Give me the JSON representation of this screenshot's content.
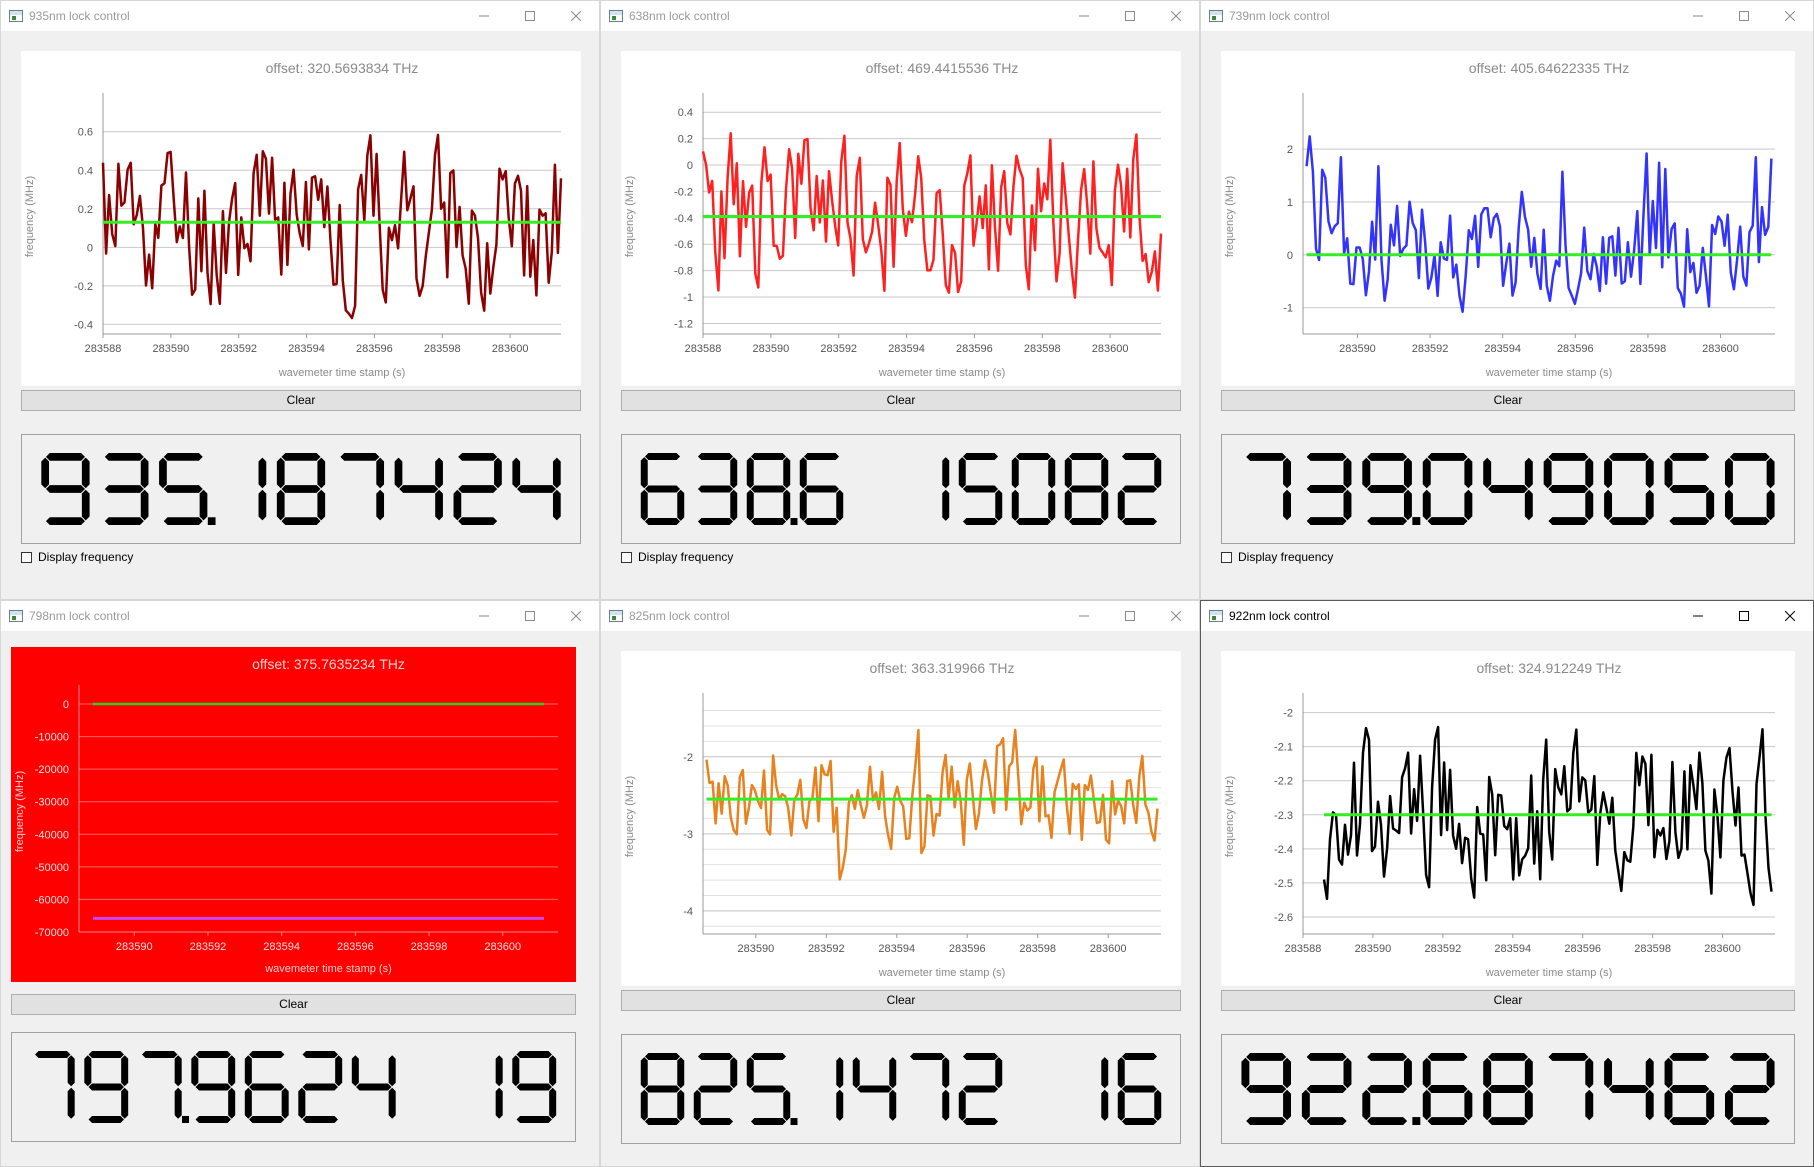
{
  "common": {
    "clear_label": "Clear",
    "display_frequency_label": "Display frequency"
  },
  "windows": [
    {
      "id": "935",
      "title": "935nm lock control",
      "active": false,
      "alarm": false,
      "offset": "offset: 320.5693834 THz",
      "frequency": "935.187424",
      "lcd_text": "935.187424",
      "show_checkbox": true,
      "line_color": "#8b0000",
      "setpoint_color": "#33ee22",
      "background": "#ffffff",
      "chart_data": {
        "type": "line",
        "title": "offset: 320.5693834 THz",
        "xlabel": "wavemeter time stamp (s)",
        "ylabel": "frequency (MHz)",
        "xlim": [
          283588,
          283601.5
        ],
        "ylim": [
          -0.45,
          0.77
        ],
        "xticks": [
          283588,
          283590,
          283592,
          283594,
          283596,
          283598,
          283600
        ],
        "yticks": [
          -0.4,
          -0.2,
          0,
          0.2,
          0.4,
          0.6
        ],
        "ytick_labels": [
          "-0.4",
          "-0.2",
          "0",
          "0.2",
          "0.4",
          "0.6"
        ],
        "setpoint": 0.13,
        "trend": {
          "x_start": 283588,
          "x_end": 283601.5,
          "seed": 11,
          "amp": 0.55,
          "baseline": 0.15,
          "min": -0.42,
          "max": 0.68
        }
      }
    },
    {
      "id": "638",
      "title": "638nm lock control",
      "active": false,
      "alarm": false,
      "offset": "offset: 469.4415536 THz",
      "frequency": "638.615082",
      "lcd_text": "638.6 15082",
      "show_checkbox": true,
      "line_color": "#ff2020",
      "setpoint_color": "#33ee22",
      "background": "#ffffff",
      "chart_data": {
        "type": "line",
        "title": "offset: 469.4415536 THz",
        "xlabel": "wavemeter time stamp (s)",
        "ylabel": "frequency (MHz)",
        "xlim": [
          283588,
          283601.5
        ],
        "ylim": [
          -1.28,
          0.5
        ],
        "xticks": [
          283588,
          283590,
          283592,
          283594,
          283596,
          283598,
          283600
        ],
        "yticks": [
          -1.2,
          -1,
          -0.8,
          -0.6,
          -0.4,
          -0.2,
          0,
          0.2,
          0.4
        ],
        "ytick_labels": [
          "-1.2",
          "-1",
          "-0.8",
          "-0.6",
          "-0.4",
          "-0.2",
          "0",
          "0.2",
          "0.4"
        ],
        "setpoint": -0.39,
        "trend": {
          "x_start": 283588,
          "x_end": 283601.5,
          "seed": 23,
          "amp": 0.8,
          "baseline": -0.35,
          "min": -1.18,
          "max": 0.45
        }
      }
    },
    {
      "id": "739",
      "title": "739nm lock control",
      "active": false,
      "alarm": false,
      "offset": "offset: 405.64622335 THz",
      "frequency": "739.049050",
      "lcd_text": "739.049050",
      "show_checkbox": true,
      "line_color": "#3333ff",
      "setpoint_color": "#33ee22",
      "background": "#ffffff",
      "chart_data": {
        "type": "line",
        "title": "offset: 405.64622335 THz",
        "xlabel": "wavemeter time stamp (s)",
        "ylabel": "frequency (MHz)",
        "xlim": [
          283588.5,
          283601.5
        ],
        "ylim": [
          -1.5,
          2.95
        ],
        "xticks": [
          283590,
          283592,
          283594,
          283596,
          283598,
          283600
        ],
        "yticks": [
          -1,
          0,
          1,
          2
        ],
        "ytick_labels": [
          "-1",
          "0",
          "1",
          "2"
        ],
        "setpoint": 0.0,
        "trend": {
          "x_start": 283588.6,
          "x_end": 283601.4,
          "seed": 37,
          "amp": 1.5,
          "baseline": 0.1,
          "min": -1.15,
          "max": 2.65
        }
      }
    },
    {
      "id": "798",
      "title": "798nm lock control",
      "active": false,
      "alarm": true,
      "offset": "offset: 375.7635234 THz",
      "frequency": "797.962419",
      "lcd_text": "797.9624 19",
      "show_checkbox": false,
      "line_color": "#33cc22",
      "setpoint_color": "#cc44ee",
      "background": "#ff0000",
      "chart_data": {
        "type": "line",
        "title": "offset: 375.7635234 THz",
        "xlabel": "wavemeter time stamp (s)",
        "ylabel": "frequency (MHz)",
        "xlim": [
          283588.5,
          283601.5
        ],
        "ylim": [
          -70000,
          4000
        ],
        "xticks": [
          283590,
          283592,
          283594,
          283596,
          283598,
          283600
        ],
        "yticks": [
          -70000,
          -60000,
          -50000,
          -40000,
          -30000,
          -20000,
          -10000,
          0
        ],
        "ytick_labels": [
          "-70000",
          "-60000",
          "-50000",
          "-40000",
          "-30000",
          "-20000",
          "-10000",
          "0"
        ],
        "flat_trace": 0,
        "setpoint": -65800
      }
    },
    {
      "id": "825",
      "title": "825nm lock control",
      "active": false,
      "alarm": false,
      "offset": "offset: 363.319966 THz",
      "frequency": "825.147216",
      "lcd_text": "825.1472 16",
      "show_checkbox": false,
      "line_color": "#e8821e",
      "setpoint_color": "#33ee22",
      "background": "#ffffff",
      "chart_data": {
        "type": "line",
        "title": "offset: 363.319966 THz",
        "xlabel": "wavemeter time stamp (s)",
        "ylabel": "frequency (MHz)",
        "xlim": [
          283588.5,
          283601.5
        ],
        "ylim": [
          -4.3,
          -1.25
        ],
        "xticks": [
          283590,
          283592,
          283594,
          283596,
          283598,
          283600
        ],
        "yticks": [
          -4,
          -3,
          -2
        ],
        "ytick_labels": [
          "-4",
          "-3",
          "-2"
        ],
        "minor_grid": true,
        "setpoint": -2.55,
        "trend": {
          "x_start": 283588.6,
          "x_end": 283601.4,
          "seed": 41,
          "amp": 0.9,
          "baseline": -2.6,
          "min": -4.15,
          "max": -1.35
        }
      }
    },
    {
      "id": "922",
      "title": "922nm lock control",
      "active": true,
      "alarm": false,
      "offset": "offset: 324.912249 THz",
      "frequency": "922.687462",
      "lcd_text": "922.687462",
      "show_checkbox": false,
      "line_color": "#000000",
      "setpoint_color": "#33ee22",
      "background": "#ffffff",
      "chart_data": {
        "type": "line",
        "title": "offset: 324.912249 THz",
        "xlabel": "wavemeter time stamp (s)",
        "ylabel": "frequency (MHz)",
        "xlim": [
          283588,
          283601.5
        ],
        "ylim": [
          -2.65,
          -1.96
        ],
        "xticks": [
          283588,
          283590,
          283592,
          283594,
          283596,
          283598,
          283600
        ],
        "yticks": [
          -2.6,
          -2.5,
          -2.4,
          -2.3,
          -2.2,
          -2.1,
          -2
        ],
        "ytick_labels": [
          "-2.6",
          "-2.5",
          "-2.4",
          "-2.3",
          "-2.2",
          "-2.1",
          "-2"
        ],
        "setpoint": -2.3,
        "trend": {
          "x_start": 283588.6,
          "x_end": 283601.4,
          "seed": 53,
          "amp": 0.3,
          "baseline": -2.3,
          "min": -2.59,
          "max": -2.0
        }
      }
    }
  ]
}
